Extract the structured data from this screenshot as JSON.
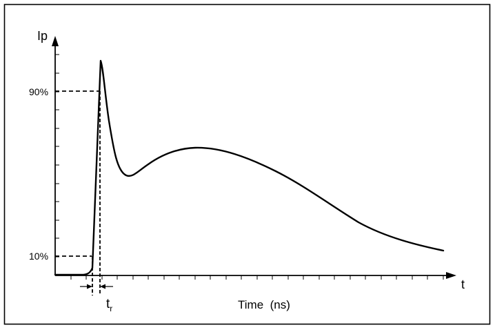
{
  "diagram": {
    "y_axis_label": "Ip",
    "x_axis_label": "t",
    "x_caption": "Time  (ns)",
    "level_high": "90%",
    "level_low": "10%",
    "rise_time_label": {
      "base": "t",
      "subscript": "r"
    }
  }
}
